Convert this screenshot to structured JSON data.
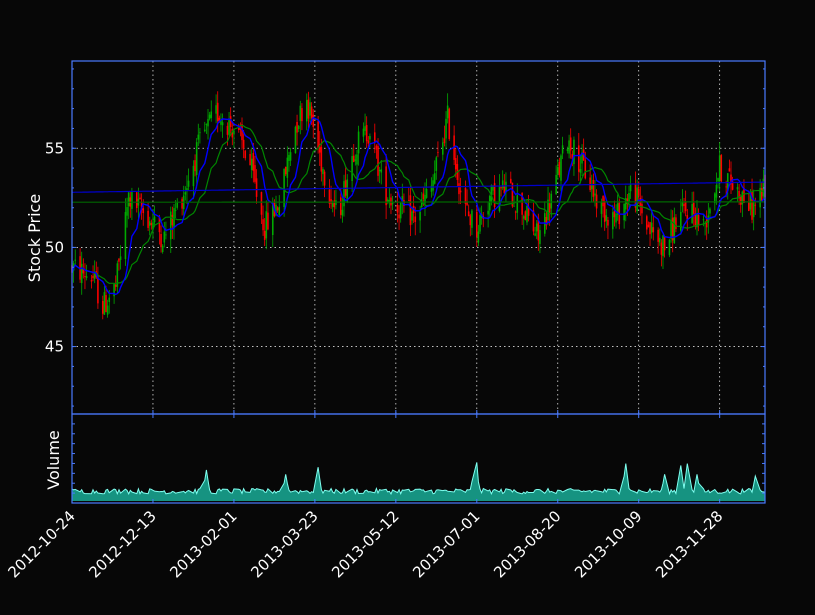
{
  "chart_data": [
    {
      "type": "candlestick",
      "ylabel": "Stock Price",
      "ylim": [
        41.6,
        59.4
      ],
      "yticks": [
        45,
        50,
        55
      ],
      "grid": true,
      "colors": {
        "up": "#00aa00",
        "down": "#ff0000",
        "ma_short": "#0000ff",
        "ma_long": "#008800",
        "ma_short_long_term": "#0000cc",
        "ma_long_long_term": "#006600",
        "axis": "#4a7aff",
        "grid": "#ffffff",
        "background": "#070707"
      },
      "x_range": [
        "2012-10-24",
        "2013-12-26"
      ],
      "xticks": [
        "2012-10-24",
        "2012-12-13",
        "2013-02-01",
        "2013-03-23",
        "2013-05-12",
        "2013-07-01",
        "2013-08-20",
        "2013-10-09",
        "2013-11-28"
      ],
      "price_anchors": {
        "dates": [
          "2012-10-24",
          "2012-11-06",
          "2012-11-12",
          "2012-11-20",
          "2012-11-28",
          "2012-12-10",
          "2012-12-20",
          "2013-01-02",
          "2013-01-12",
          "2013-01-22",
          "2013-02-01",
          "2013-02-10",
          "2013-02-20",
          "2013-03-02",
          "2013-03-10",
          "2013-03-18",
          "2013-03-28",
          "2013-04-06",
          "2013-04-16",
          "2013-04-26",
          "2013-05-04",
          "2013-05-14",
          "2013-05-24",
          "2013-06-03",
          "2013-06-13",
          "2013-06-23",
          "2013-07-01",
          "2013-07-09",
          "2013-07-19",
          "2013-07-29",
          "2013-08-08",
          "2013-08-18",
          "2013-08-26",
          "2013-09-05",
          "2013-09-15",
          "2013-09-25",
          "2013-10-05",
          "2013-10-15",
          "2013-10-25",
          "2013-11-02",
          "2013-11-10",
          "2013-11-18",
          "2013-11-28",
          "2013-12-08",
          "2013-12-18",
          "2013-12-26"
        ],
        "close": [
          49.0,
          48.5,
          47.0,
          48.0,
          52.5,
          51.5,
          50.5,
          53.0,
          55.5,
          56.8,
          56.0,
          54.5,
          51.0,
          52.5,
          56.0,
          57.5,
          54.0,
          51.5,
          55.0,
          56.0,
          53.0,
          52.0,
          51.5,
          53.0,
          56.5,
          52.0,
          51.0,
          52.5,
          53.0,
          52.0,
          50.5,
          53.0,
          55.5,
          54.0,
          52.0,
          51.5,
          53.0,
          51.0,
          50.0,
          51.5,
          52.0,
          51.0,
          54.0,
          53.0,
          52.0,
          53.0
        ]
      },
      "moving_averages": [
        {
          "window": "short"
        },
        {
          "window": "long"
        },
        {
          "window": "long-term short"
        },
        {
          "window": "long-term long"
        }
      ]
    },
    {
      "type": "area",
      "ylabel": "Volume",
      "fill_color": "#1ab7a0",
      "line_color": "#7ffff0",
      "spikes": [
        {
          "date": "2012-11-25",
          "level": 0.2
        },
        {
          "date": "2013-01-15",
          "level": 0.35
        },
        {
          "date": "2013-03-05",
          "level": 0.3
        },
        {
          "date": "2013-03-25",
          "level": 0.38
        },
        {
          "date": "2013-06-30",
          "level": 0.65
        },
        {
          "date": "2013-10-01",
          "level": 0.42
        },
        {
          "date": "2013-10-25",
          "level": 0.3
        },
        {
          "date": "2013-11-04",
          "level": 0.4
        },
        {
          "date": "2013-11-08",
          "level": 0.42
        },
        {
          "date": "2013-11-14",
          "level": 0.3
        },
        {
          "date": "2013-12-20",
          "level": 0.28
        }
      ]
    }
  ]
}
